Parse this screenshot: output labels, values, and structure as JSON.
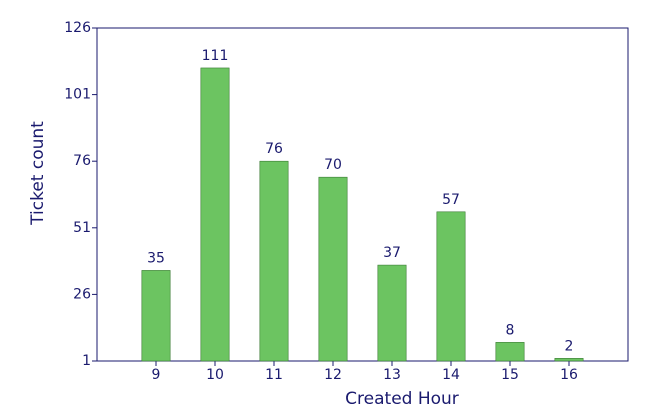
{
  "chart_data": {
    "type": "bar",
    "x_label": "Created Hour",
    "y_label": "Ticket count",
    "x": [
      9,
      10,
      11,
      12,
      13,
      14,
      15,
      16
    ],
    "values": [
      35,
      111,
      76,
      70,
      37,
      57,
      8,
      2
    ],
    "color": "#6cc461",
    "xlim": [
      8,
      17
    ],
    "xticks": [
      9,
      10,
      11,
      12,
      13,
      14,
      15,
      16
    ],
    "ylim": [
      1,
      126
    ],
    "yticks": [
      1,
      26,
      51,
      76,
      101,
      126
    ]
  }
}
